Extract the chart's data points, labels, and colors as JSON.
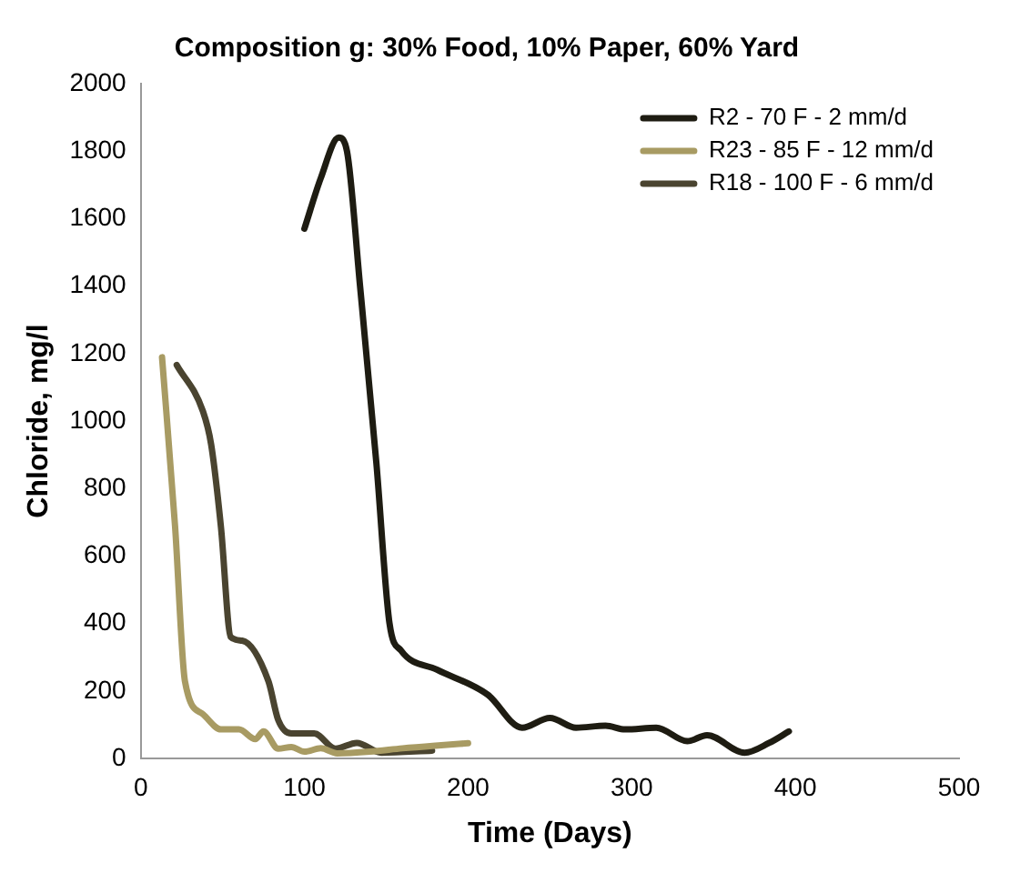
{
  "chart_data": {
    "type": "line",
    "title": "Composition g: 30% Food, 10% Paper, 60% Yard",
    "xlabel": "Time (Days)",
    "ylabel": "Chloride, mg/l",
    "xlim": [
      0,
      500
    ],
    "xticks": [
      0,
      100,
      200,
      300,
      400,
      500
    ],
    "ylim": [
      0,
      2000
    ],
    "yticks": [
      0,
      200,
      400,
      600,
      800,
      1000,
      1200,
      1400,
      1600,
      1800,
      2000
    ],
    "grid": false,
    "legend": "top right",
    "marker": "none",
    "line_style": "solid",
    "series": [
      {
        "name": "R2 - 70 F - 2 mm/d",
        "color": "#1e1c12",
        "x": [
          100,
          110,
          121,
          126,
          134,
          144,
          152,
          159,
          181,
          212,
          233,
          250,
          266,
          284,
          296,
          315,
          334,
          346,
          369,
          384,
          396
        ],
        "values": [
          1570,
          1720,
          1840,
          1800,
          1400,
          874,
          400,
          320,
          263,
          189,
          91,
          120,
          91,
          97,
          86,
          91,
          51,
          69,
          17,
          46,
          80
        ]
      },
      {
        "name": "R23 - 85 F - 12 mm/d",
        "color": "#a89b63",
        "x": [
          13,
          21,
          27,
          38,
          49,
          60,
          70,
          75,
          84,
          92,
          100,
          110,
          120,
          140,
          160,
          180,
          200
        ],
        "values": [
          1189,
          686,
          229,
          131,
          86,
          86,
          57,
          80,
          29,
          34,
          20,
          30,
          15,
          20,
          30,
          38,
          45
        ]
      },
      {
        "name": "R18 - 100 F - 6 mm/d",
        "color": "#4a4430",
        "x": [
          22,
          38,
          43,
          49,
          55,
          62,
          78,
          84,
          92,
          106,
          119,
          132,
          147,
          178
        ],
        "values": [
          1166,
          1029,
          931,
          686,
          360,
          349,
          229,
          114,
          74,
          74,
          29,
          46,
          17,
          23
        ]
      }
    ]
  }
}
